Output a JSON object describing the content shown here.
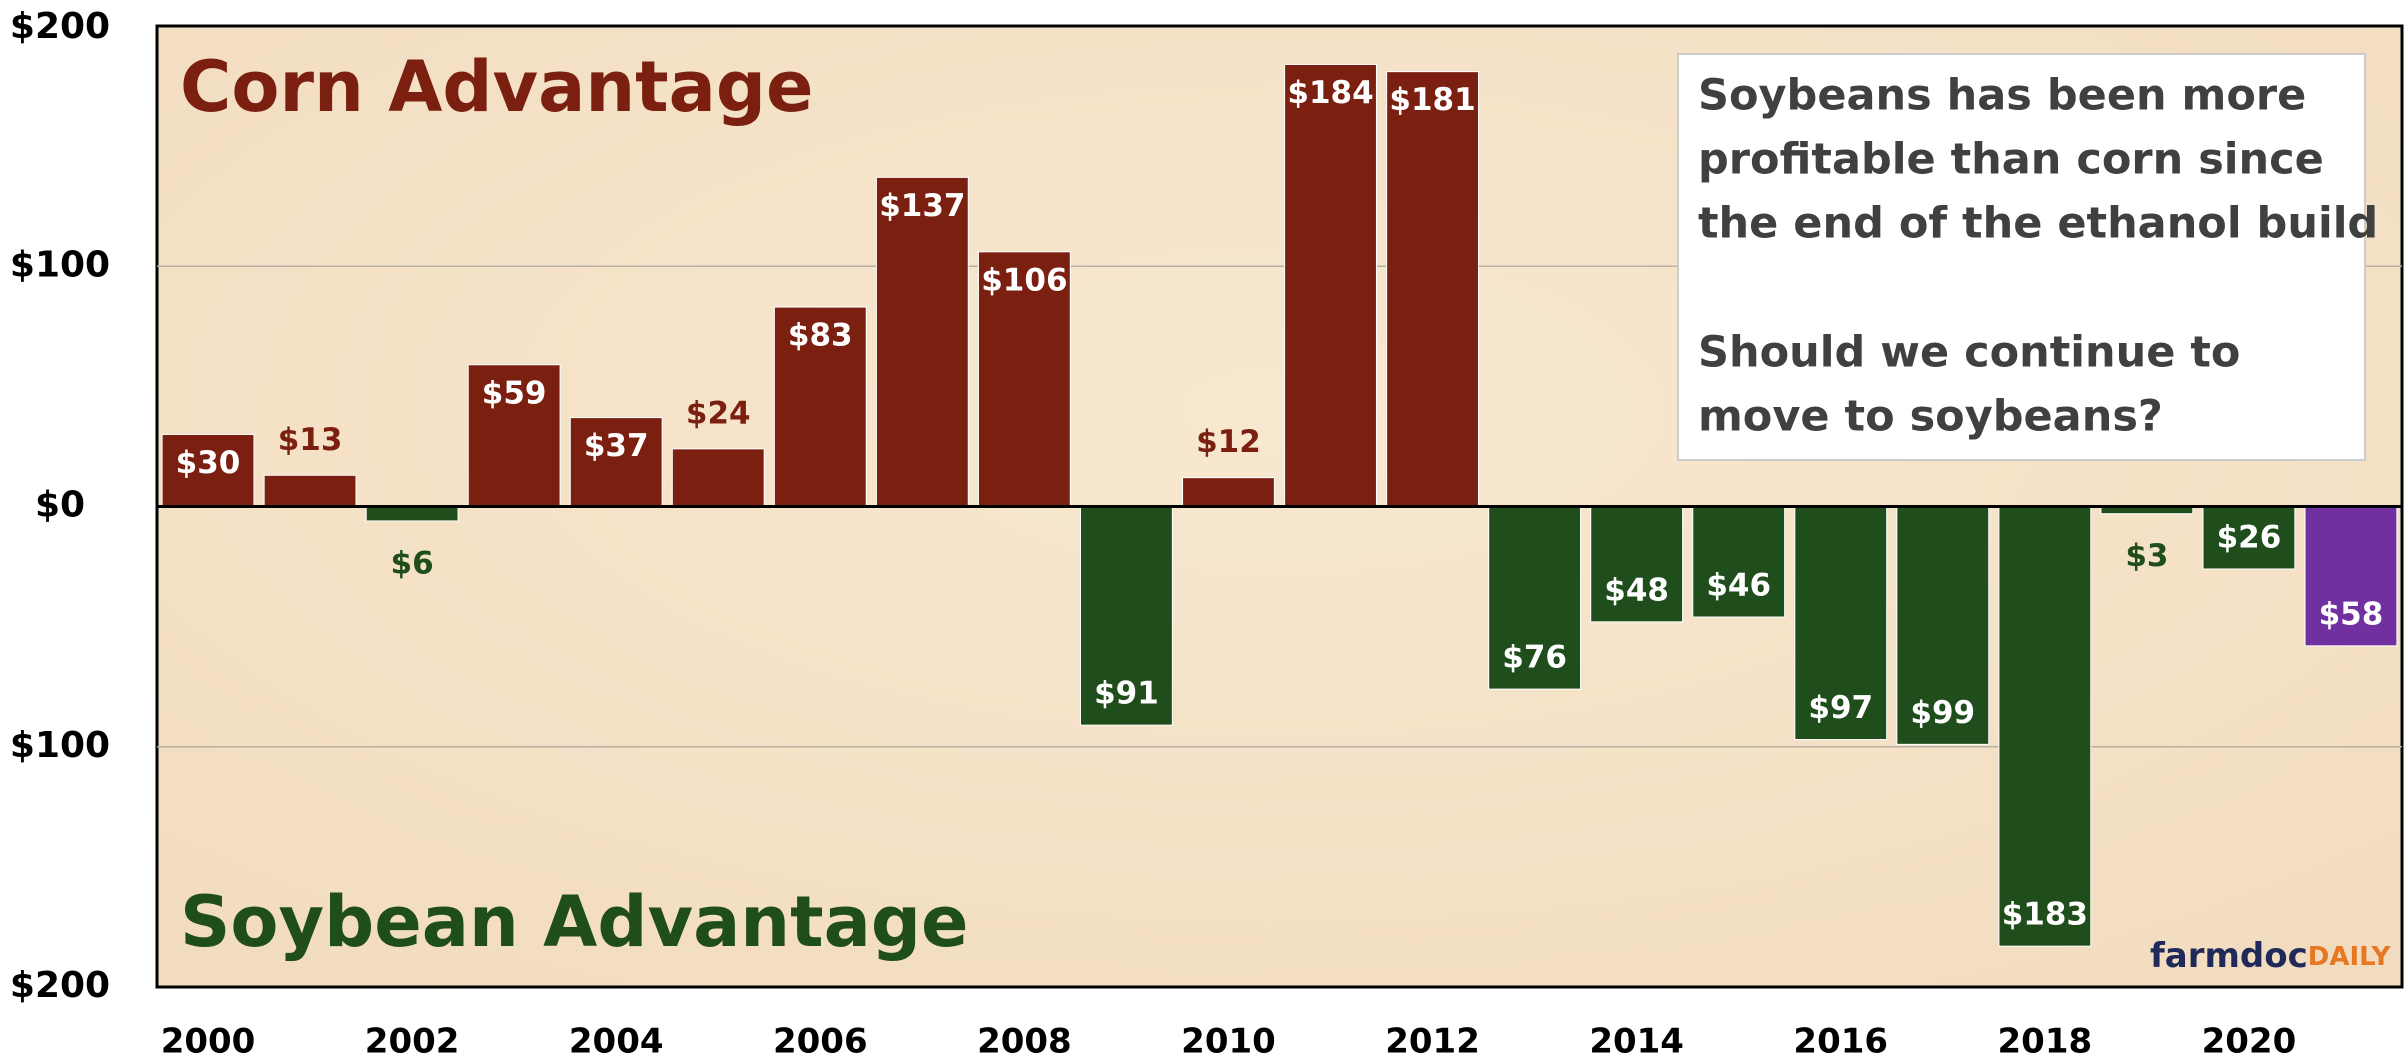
{
  "chart_data": {
    "type": "bar",
    "categories": [
      "2000",
      null,
      "2002",
      null,
      "2004",
      null,
      "2006",
      null,
      "2008",
      null,
      "2010",
      null,
      "2012",
      null,
      "2014",
      null,
      "2016",
      null,
      "2018",
      null,
      "2020",
      null
    ],
    "values": [
      30,
      13,
      -6,
      59,
      37,
      24,
      83,
      137,
      106,
      -91,
      12,
      184,
      181,
      -76,
      -48,
      -46,
      -97,
      -99,
      -183,
      -3,
      -26,
      -58
    ],
    "value_labels": [
      "$30",
      "$13",
      "$6",
      "$59",
      "$37",
      "$24",
      "$83",
      "$137",
      "$106",
      "$91",
      "$12",
      "$184",
      "$181",
      "$76",
      "$48",
      "$46",
      "$97",
      "$99",
      "$183",
      "$3",
      "$26",
      "$58"
    ],
    "colors": [
      "#7b1f10",
      "#7b1f10",
      "#1f4d1c",
      "#7b1f10",
      "#7b1f10",
      "#7b1f10",
      "#7b1f10",
      "#7b1f10",
      "#7b1f10",
      "#1f4d1c",
      "#7b1f10",
      "#7b1f10",
      "#7b1f10",
      "#1f4d1c",
      "#1f4d1c",
      "#1f4d1c",
      "#1f4d1c",
      "#1f4d1c",
      "#1f4d1c",
      "#1f4d1c",
      "#1f4d1c",
      "#7030a0"
    ],
    "ylim": [
      -200,
      200
    ],
    "yticks": [
      {
        "value": -200,
        "label": "$200"
      },
      {
        "value": -100,
        "label": "$100"
      },
      {
        "value": 0,
        "label": "$0"
      },
      {
        "value": 100,
        "label": "$100"
      },
      {
        "value": 200,
        "label": "$200"
      }
    ],
    "grid": true,
    "annotations": {
      "top": "Corn Advantage",
      "bottom": "Soybean Advantage",
      "box": [
        "Soybeans has been more",
        "profitable than corn since",
        "the end of the ethanol build",
        "Should we continue to",
        "move to soybeans?"
      ]
    },
    "logo": [
      "farmdoc",
      "DAILY"
    ]
  }
}
